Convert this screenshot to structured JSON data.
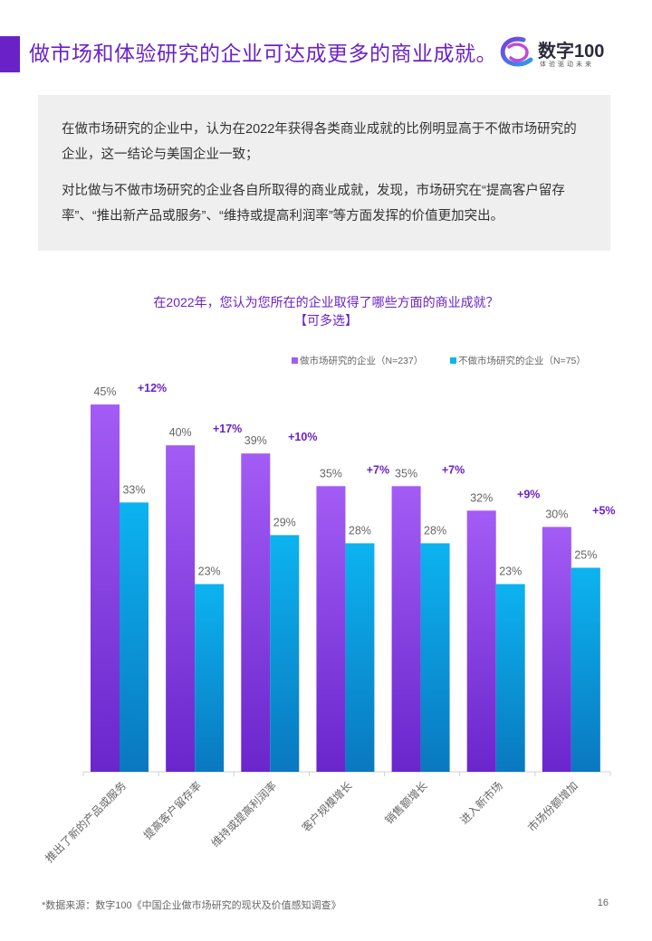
{
  "header": {
    "title": "做市场和体验研究的企业可达成更多的商业成就。",
    "logo_name": "数字100",
    "logo_slogan": "体验驱动未来"
  },
  "summary": {
    "p1": "在做市场研究的企业中，认为在2022年获得各类商业成就的比例明显高于不做市场研究的企业，这一结论与美国企业一致；",
    "p2": "对比做与不做市场研究的企业各自所取得的商业成就，发现，市场研究在“提高客户留存率”、“推出新产品或服务”、“维持或提高利润率”等方面发挥的价值更加突出。"
  },
  "chart_title": {
    "line1": "在2022年，您认为您所在的企业取得了哪些方面的商业成就？",
    "line2": "【可多选】"
  },
  "chart_data": {
    "type": "bar",
    "categories": [
      "推出了新的产品或服务",
      "提高客户留存率",
      "维持或提高利润率",
      "客户规模增长",
      "销售额增长",
      "进入新市场",
      "市场份额增加"
    ],
    "series": [
      {
        "name": "做市场研究的企业（N=237）",
        "values": [
          45,
          40,
          39,
          35,
          35,
          32,
          30
        ],
        "labels": [
          "45%",
          "40%",
          "39%",
          "35%",
          "35%",
          "32%",
          "30%"
        ],
        "color_top": "#a35cf5",
        "color_bottom": "#6a26cc"
      },
      {
        "name": "不做市场研究的企业（N=75）",
        "values": [
          33,
          23,
          29,
          28,
          28,
          23,
          25
        ],
        "labels": [
          "33%",
          "23%",
          "29%",
          "28%",
          "28%",
          "23%",
          "25%"
        ],
        "color_top": "#0cb3f0",
        "color_bottom": "#0a78c0"
      }
    ],
    "differences": [
      "+12%",
      "+17%",
      "+10%",
      "+7%",
      "+7%",
      "+9%",
      "+5%"
    ],
    "ylim": [
      0,
      48
    ],
    "legend_position": "top-right",
    "grid": false
  },
  "footer": {
    "source": "*数据来源：数字100《中国企业做市场研究的现状及价值感知调查》",
    "page": "16"
  },
  "colors": {
    "accent": "#6a22c8",
    "label_gray": "#666666",
    "axis": "#d0d0d0"
  }
}
